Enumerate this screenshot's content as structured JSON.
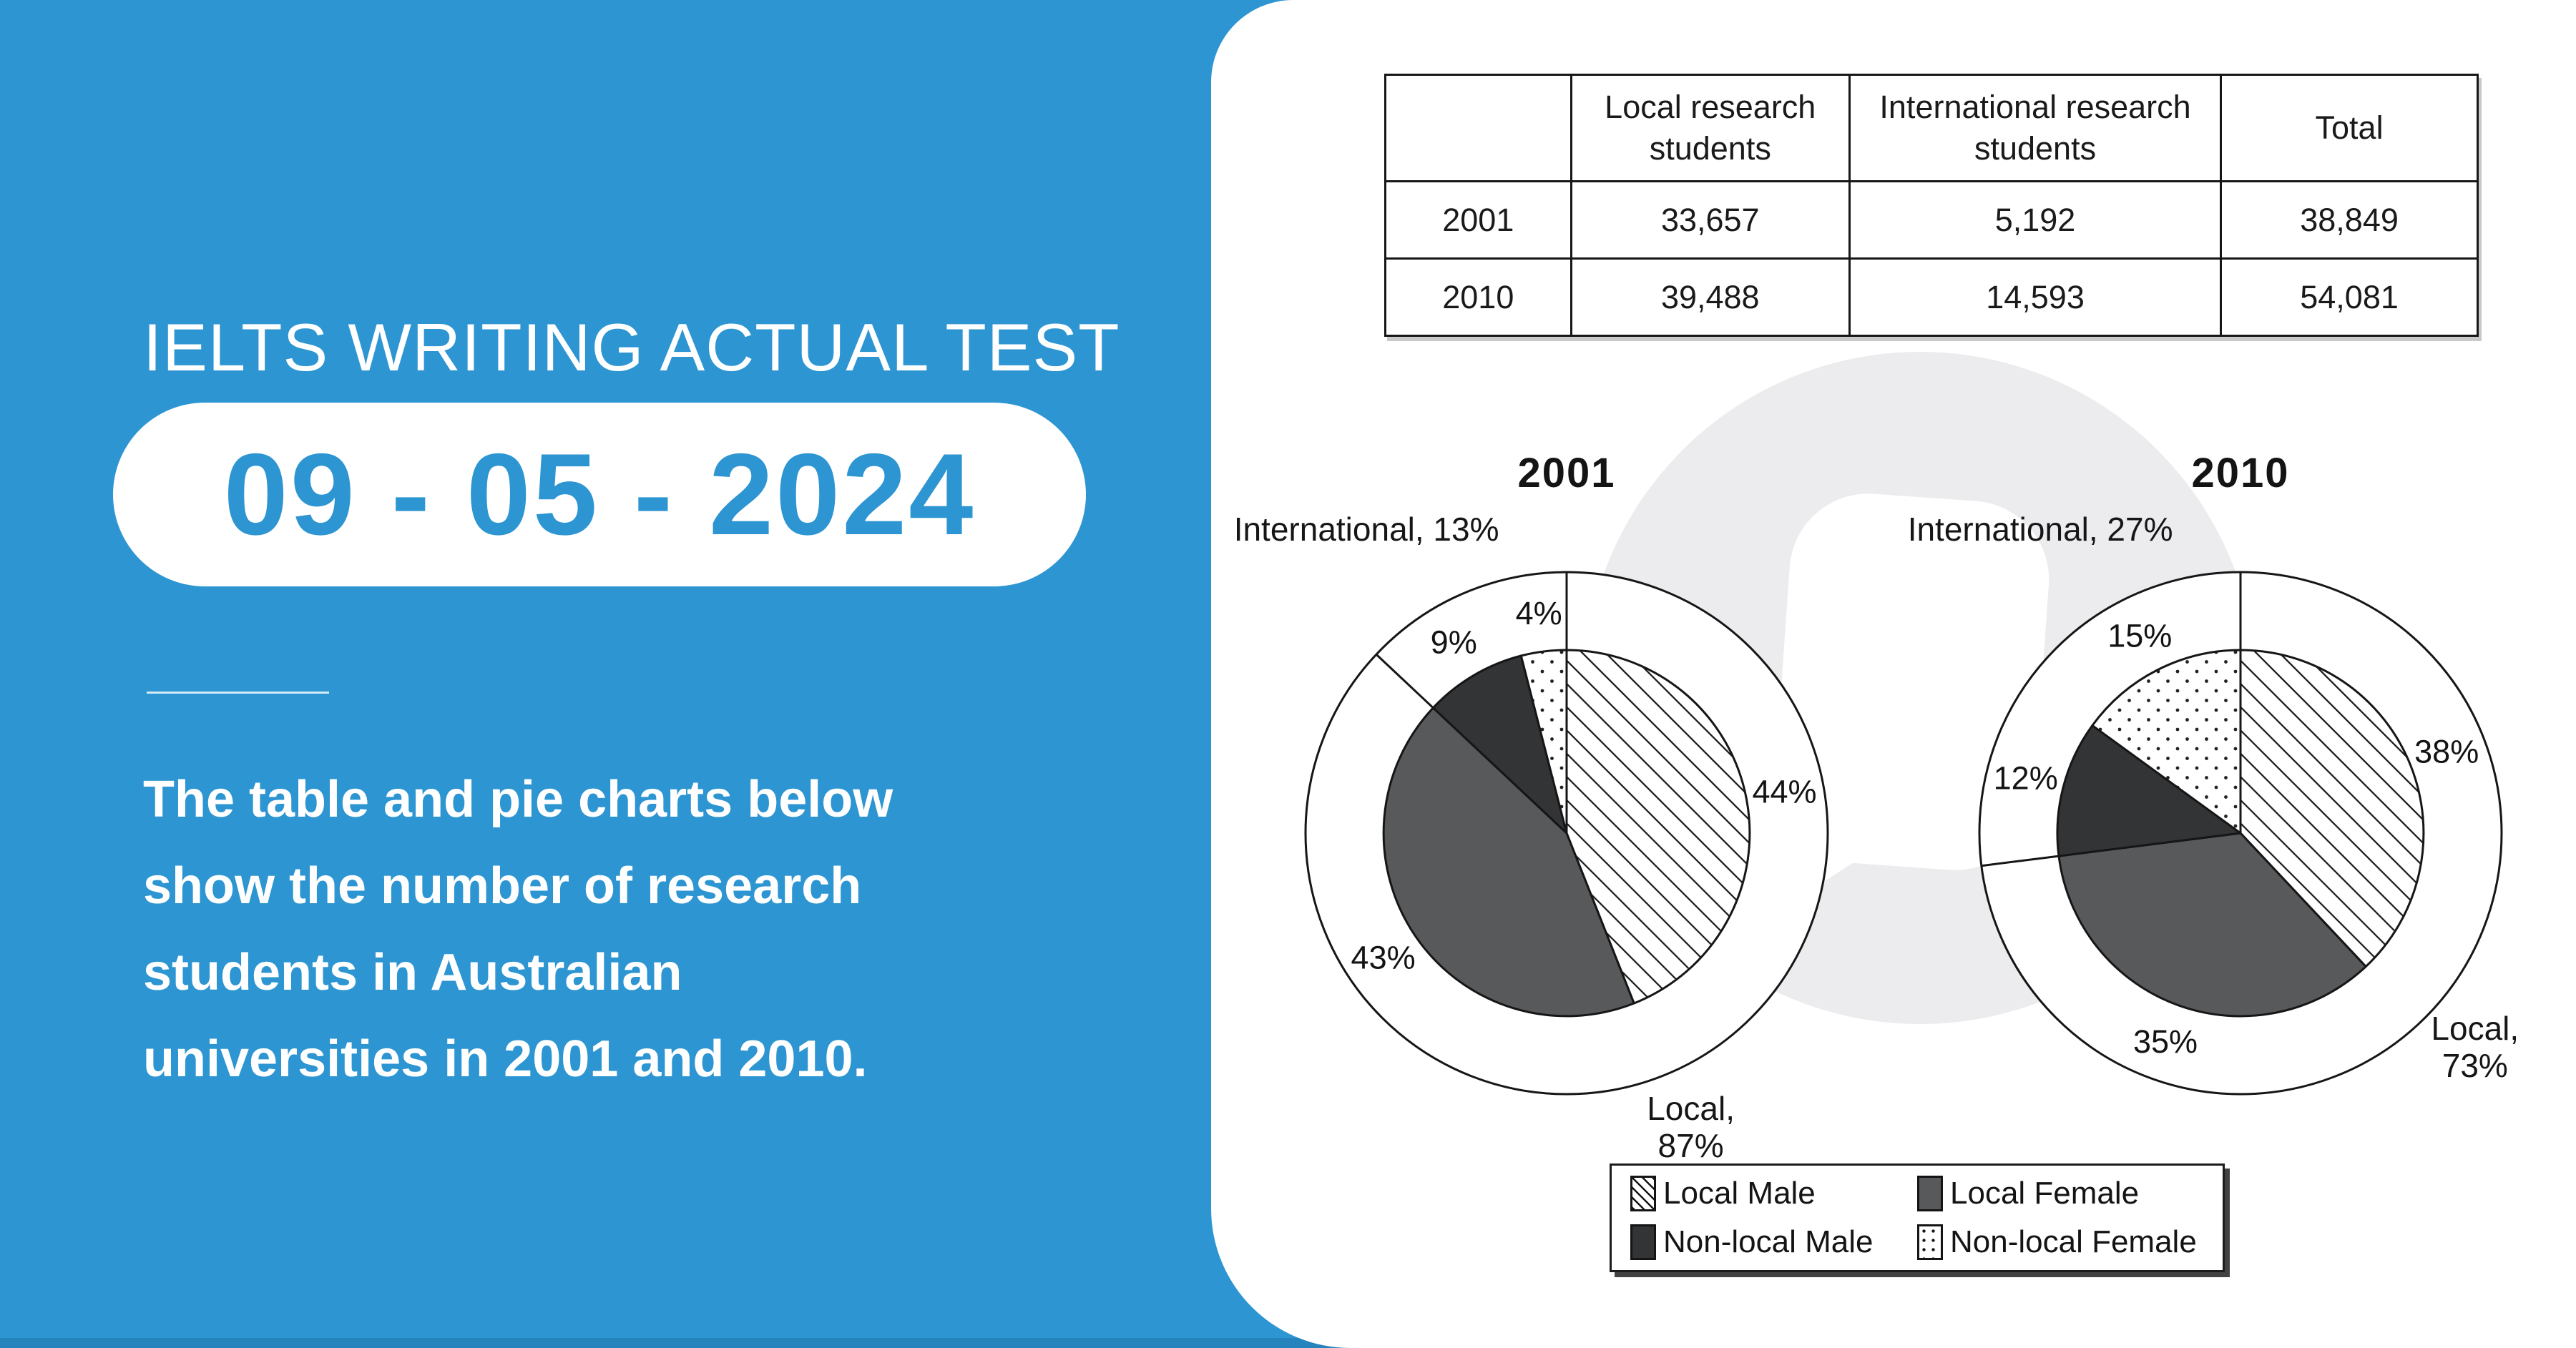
{
  "left_panel": {
    "accent_color": "#2c95d2",
    "heading": "IELTS WRITING ACTUAL TEST",
    "date": "09 - 05 - 2024",
    "description_lines": [
      "The table and pie charts below",
      "show the number of research",
      "students in Australian",
      "universities in 2001 and 2010."
    ]
  },
  "chart_data": [
    {
      "type": "table",
      "headers": [
        "",
        "Local research students",
        "International research students",
        "Total"
      ],
      "rows": [
        [
          "2001",
          "33,657",
          "5,192",
          "38,849"
        ],
        [
          "2010",
          "39,488",
          "14,593",
          "54,081"
        ]
      ]
    },
    {
      "type": "pie",
      "variant": "nested-donut",
      "title": "2001",
      "outer": {
        "labels": [
          "Local",
          "International"
        ],
        "values": [
          87,
          13
        ]
      },
      "inner": {
        "labels": [
          "Local Male",
          "Local Female",
          "Non-local Male",
          "Non-local Female"
        ],
        "values": [
          44,
          43,
          9,
          4
        ],
        "styles": [
          "hatch",
          "#58595b",
          "#333436",
          "dots"
        ]
      },
      "legend_position": "bottom",
      "grid": false
    },
    {
      "type": "pie",
      "variant": "nested-donut",
      "title": "2010",
      "outer": {
        "labels": [
          "Local",
          "International"
        ],
        "values": [
          73,
          27
        ]
      },
      "inner": {
        "labels": [
          "Local Male",
          "Local Female",
          "Non-local Male",
          "Non-local Female"
        ],
        "values": [
          38,
          35,
          12,
          15
        ],
        "styles": [
          "hatch",
          "#58595b",
          "#333436",
          "dots"
        ]
      },
      "legend_position": "bottom",
      "grid": false
    }
  ],
  "legend": {
    "items": [
      {
        "label": "Local Male",
        "swatch": "hatch",
        "color": ""
      },
      {
        "label": "Local Female",
        "swatch": "solid",
        "color": "#58595b"
      },
      {
        "label": "Non-local Male",
        "swatch": "solid",
        "color": "#333436"
      },
      {
        "label": "Non-local Female",
        "swatch": "dots",
        "color": ""
      }
    ]
  },
  "colors": {
    "background_blue": "#2c95d2",
    "panel_white": "#ffffff",
    "stroke_black": "#161616",
    "local_female_gray": "#58595b",
    "non_local_male_dark": "#333436",
    "watermark_gray": "#ececee"
  }
}
